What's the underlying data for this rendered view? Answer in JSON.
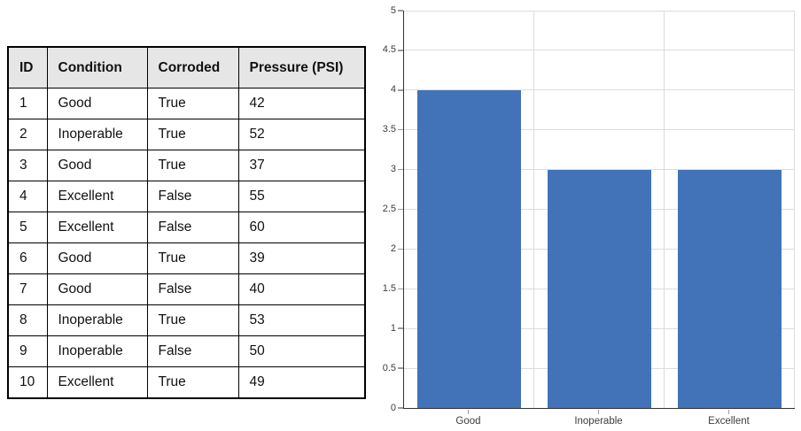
{
  "table": {
    "columns": [
      "ID",
      "Condition",
      "Corroded",
      "Pressure (PSI)"
    ],
    "rows": [
      [
        "1",
        "Good",
        "True",
        "42"
      ],
      [
        "2",
        "Inoperable",
        "True",
        "52"
      ],
      [
        "3",
        "Good",
        "True",
        "37"
      ],
      [
        "4",
        "Excellent",
        "False",
        "55"
      ],
      [
        "5",
        "Excellent",
        "False",
        "60"
      ],
      [
        "6",
        "Good",
        "True",
        "39"
      ],
      [
        "7",
        "Good",
        "False",
        "40"
      ],
      [
        "8",
        "Inoperable",
        "True",
        "53"
      ],
      [
        "9",
        "Inoperable",
        "False",
        "50"
      ],
      [
        "10",
        "Excellent",
        "True",
        "49"
      ]
    ]
  },
  "chart_data": {
    "type": "bar",
    "categories": [
      "Good",
      "Inoperable",
      "Excellent"
    ],
    "values": [
      4,
      3,
      3
    ],
    "title": "",
    "xlabel": "",
    "ylabel": "",
    "ylim": [
      0,
      5
    ],
    "ytick_step": 0.5,
    "ytick_labels": [
      "0",
      "0.5",
      "1",
      "1.5",
      "2",
      "2.5",
      "3",
      "3.5",
      "4",
      "4.5",
      "5"
    ],
    "grid": true,
    "legend": false,
    "bar_width_ratio": 0.8
  },
  "colors": {
    "bar": "#4272b8",
    "table_header_bg": "#e7e6e6",
    "table_border": "#000000",
    "gridline": "#dcdcdc",
    "axis": "#333333",
    "tick": "#9b9b9b",
    "axis_text": "#3d3d3d"
  }
}
